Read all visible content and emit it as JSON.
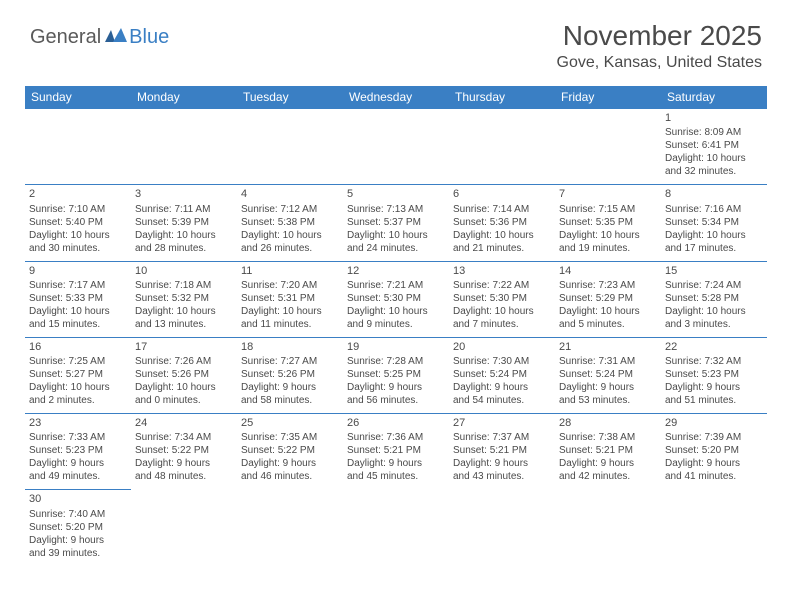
{
  "logo": {
    "part1": "General",
    "part2": "Blue"
  },
  "title": "November 2025",
  "location": "Gove, Kansas, United States",
  "colors": {
    "header_bg": "#3a7fc4",
    "header_text": "#ffffff",
    "border": "#3a7fc4",
    "cell_text": "#4a4a4a",
    "logo_gray": "#5a5a5a",
    "logo_blue": "#3a7fc4",
    "page_bg": "#ffffff"
  },
  "daysOfWeek": [
    "Sunday",
    "Monday",
    "Tuesday",
    "Wednesday",
    "Thursday",
    "Friday",
    "Saturday"
  ],
  "weeks": [
    [
      null,
      null,
      null,
      null,
      null,
      null,
      {
        "n": "1",
        "sr": "Sunrise: 8:09 AM",
        "ss": "Sunset: 6:41 PM",
        "dl1": "Daylight: 10 hours",
        "dl2": "and 32 minutes."
      }
    ],
    [
      {
        "n": "2",
        "sr": "Sunrise: 7:10 AM",
        "ss": "Sunset: 5:40 PM",
        "dl1": "Daylight: 10 hours",
        "dl2": "and 30 minutes."
      },
      {
        "n": "3",
        "sr": "Sunrise: 7:11 AM",
        "ss": "Sunset: 5:39 PM",
        "dl1": "Daylight: 10 hours",
        "dl2": "and 28 minutes."
      },
      {
        "n": "4",
        "sr": "Sunrise: 7:12 AM",
        "ss": "Sunset: 5:38 PM",
        "dl1": "Daylight: 10 hours",
        "dl2": "and 26 minutes."
      },
      {
        "n": "5",
        "sr": "Sunrise: 7:13 AM",
        "ss": "Sunset: 5:37 PM",
        "dl1": "Daylight: 10 hours",
        "dl2": "and 24 minutes."
      },
      {
        "n": "6",
        "sr": "Sunrise: 7:14 AM",
        "ss": "Sunset: 5:36 PM",
        "dl1": "Daylight: 10 hours",
        "dl2": "and 21 minutes."
      },
      {
        "n": "7",
        "sr": "Sunrise: 7:15 AM",
        "ss": "Sunset: 5:35 PM",
        "dl1": "Daylight: 10 hours",
        "dl2": "and 19 minutes."
      },
      {
        "n": "8",
        "sr": "Sunrise: 7:16 AM",
        "ss": "Sunset: 5:34 PM",
        "dl1": "Daylight: 10 hours",
        "dl2": "and 17 minutes."
      }
    ],
    [
      {
        "n": "9",
        "sr": "Sunrise: 7:17 AM",
        "ss": "Sunset: 5:33 PM",
        "dl1": "Daylight: 10 hours",
        "dl2": "and 15 minutes."
      },
      {
        "n": "10",
        "sr": "Sunrise: 7:18 AM",
        "ss": "Sunset: 5:32 PM",
        "dl1": "Daylight: 10 hours",
        "dl2": "and 13 minutes."
      },
      {
        "n": "11",
        "sr": "Sunrise: 7:20 AM",
        "ss": "Sunset: 5:31 PM",
        "dl1": "Daylight: 10 hours",
        "dl2": "and 11 minutes."
      },
      {
        "n": "12",
        "sr": "Sunrise: 7:21 AM",
        "ss": "Sunset: 5:30 PM",
        "dl1": "Daylight: 10 hours",
        "dl2": "and 9 minutes."
      },
      {
        "n": "13",
        "sr": "Sunrise: 7:22 AM",
        "ss": "Sunset: 5:30 PM",
        "dl1": "Daylight: 10 hours",
        "dl2": "and 7 minutes."
      },
      {
        "n": "14",
        "sr": "Sunrise: 7:23 AM",
        "ss": "Sunset: 5:29 PM",
        "dl1": "Daylight: 10 hours",
        "dl2": "and 5 minutes."
      },
      {
        "n": "15",
        "sr": "Sunrise: 7:24 AM",
        "ss": "Sunset: 5:28 PM",
        "dl1": "Daylight: 10 hours",
        "dl2": "and 3 minutes."
      }
    ],
    [
      {
        "n": "16",
        "sr": "Sunrise: 7:25 AM",
        "ss": "Sunset: 5:27 PM",
        "dl1": "Daylight: 10 hours",
        "dl2": "and 2 minutes."
      },
      {
        "n": "17",
        "sr": "Sunrise: 7:26 AM",
        "ss": "Sunset: 5:26 PM",
        "dl1": "Daylight: 10 hours",
        "dl2": "and 0 minutes."
      },
      {
        "n": "18",
        "sr": "Sunrise: 7:27 AM",
        "ss": "Sunset: 5:26 PM",
        "dl1": "Daylight: 9 hours",
        "dl2": "and 58 minutes."
      },
      {
        "n": "19",
        "sr": "Sunrise: 7:28 AM",
        "ss": "Sunset: 5:25 PM",
        "dl1": "Daylight: 9 hours",
        "dl2": "and 56 minutes."
      },
      {
        "n": "20",
        "sr": "Sunrise: 7:30 AM",
        "ss": "Sunset: 5:24 PM",
        "dl1": "Daylight: 9 hours",
        "dl2": "and 54 minutes."
      },
      {
        "n": "21",
        "sr": "Sunrise: 7:31 AM",
        "ss": "Sunset: 5:24 PM",
        "dl1": "Daylight: 9 hours",
        "dl2": "and 53 minutes."
      },
      {
        "n": "22",
        "sr": "Sunrise: 7:32 AM",
        "ss": "Sunset: 5:23 PM",
        "dl1": "Daylight: 9 hours",
        "dl2": "and 51 minutes."
      }
    ],
    [
      {
        "n": "23",
        "sr": "Sunrise: 7:33 AM",
        "ss": "Sunset: 5:23 PM",
        "dl1": "Daylight: 9 hours",
        "dl2": "and 49 minutes."
      },
      {
        "n": "24",
        "sr": "Sunrise: 7:34 AM",
        "ss": "Sunset: 5:22 PM",
        "dl1": "Daylight: 9 hours",
        "dl2": "and 48 minutes."
      },
      {
        "n": "25",
        "sr": "Sunrise: 7:35 AM",
        "ss": "Sunset: 5:22 PM",
        "dl1": "Daylight: 9 hours",
        "dl2": "and 46 minutes."
      },
      {
        "n": "26",
        "sr": "Sunrise: 7:36 AM",
        "ss": "Sunset: 5:21 PM",
        "dl1": "Daylight: 9 hours",
        "dl2": "and 45 minutes."
      },
      {
        "n": "27",
        "sr": "Sunrise: 7:37 AM",
        "ss": "Sunset: 5:21 PM",
        "dl1": "Daylight: 9 hours",
        "dl2": "and 43 minutes."
      },
      {
        "n": "28",
        "sr": "Sunrise: 7:38 AM",
        "ss": "Sunset: 5:21 PM",
        "dl1": "Daylight: 9 hours",
        "dl2": "and 42 minutes."
      },
      {
        "n": "29",
        "sr": "Sunrise: 7:39 AM",
        "ss": "Sunset: 5:20 PM",
        "dl1": "Daylight: 9 hours",
        "dl2": "and 41 minutes."
      }
    ],
    [
      {
        "n": "30",
        "sr": "Sunrise: 7:40 AM",
        "ss": "Sunset: 5:20 PM",
        "dl1": "Daylight: 9 hours",
        "dl2": "and 39 minutes."
      },
      null,
      null,
      null,
      null,
      null,
      null
    ]
  ]
}
